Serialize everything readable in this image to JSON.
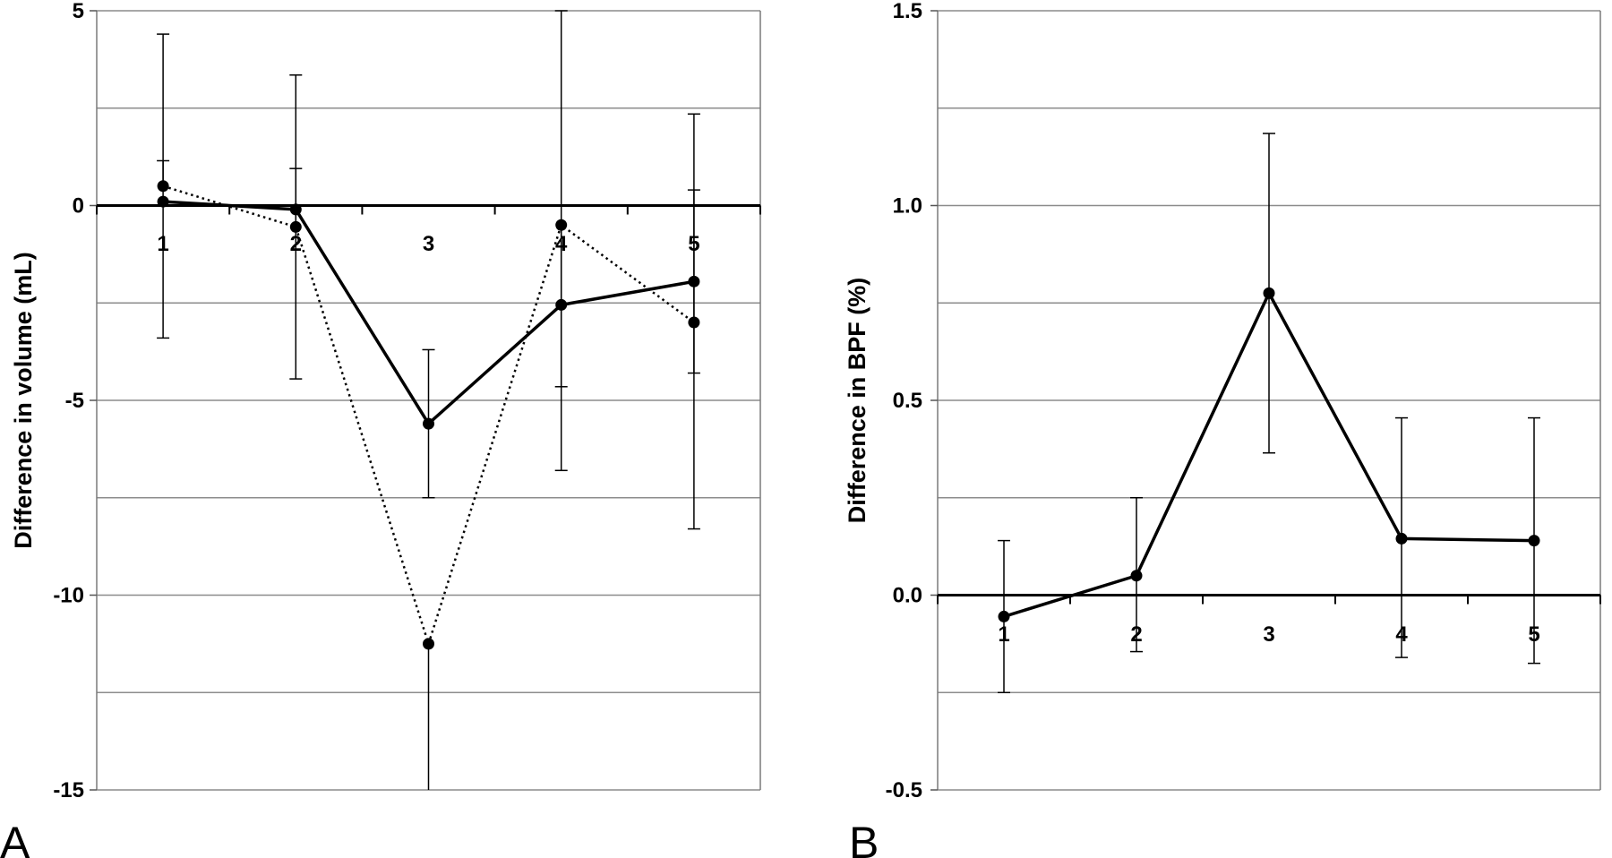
{
  "chart_data": [
    {
      "type": "line",
      "panel_label": "A",
      "title": "",
      "xlabel": "",
      "ylabel": "Difference in volume (mL)",
      "categories": [
        "1",
        "2",
        "3",
        "4",
        "5"
      ],
      "ylim": [
        -15,
        5
      ],
      "yticks": [
        -15,
        -10,
        -5,
        0,
        5
      ],
      "ytick_labels": [
        "-15",
        "-10",
        "-5",
        "0",
        "5"
      ],
      "minor_gridlines": [
        -12.5,
        -7.5,
        -2.5,
        2.5
      ],
      "grid": true,
      "series": [
        {
          "style": "solid",
          "values": [
            0.1,
            -0.1,
            -5.6,
            -2.55,
            -1.95
          ],
          "error_low": [
            -3.4,
            -4.45,
            -7.5,
            -6.8,
            -8.3
          ],
          "error_high": [
            4.4,
            3.35,
            -3.7,
            5.0,
            2.35
          ]
        },
        {
          "style": "dotted",
          "values": [
            0.5,
            -0.55,
            -11.25,
            -0.5,
            -3.0
          ],
          "error_low": [
            null,
            null,
            -15.0,
            -4.65,
            -4.3
          ],
          "error_high": [
            1.15,
            0.95,
            null,
            null,
            0.4
          ]
        }
      ]
    },
    {
      "type": "line",
      "panel_label": "B",
      "title": "",
      "xlabel": "",
      "ylabel": "Difference in BPF (%)",
      "categories": [
        "1",
        "2",
        "3",
        "4",
        "5"
      ],
      "ylim": [
        -0.5,
        1.5
      ],
      "yticks": [
        -0.5,
        0.0,
        0.5,
        1.0,
        1.5
      ],
      "ytick_labels": [
        "-0.5",
        "0.0",
        "0.5",
        "1.0",
        "1.5"
      ],
      "minor_gridlines": [
        -0.25,
        0.25,
        0.75,
        1.25
      ],
      "grid": true,
      "series": [
        {
          "style": "solid",
          "values": [
            -0.055,
            0.05,
            0.775,
            0.145,
            0.14
          ],
          "error_low": [
            -0.25,
            -0.145,
            0.365,
            -0.16,
            -0.175
          ],
          "error_high": [
            0.14,
            0.25,
            1.185,
            0.455,
            0.455
          ]
        }
      ]
    }
  ]
}
